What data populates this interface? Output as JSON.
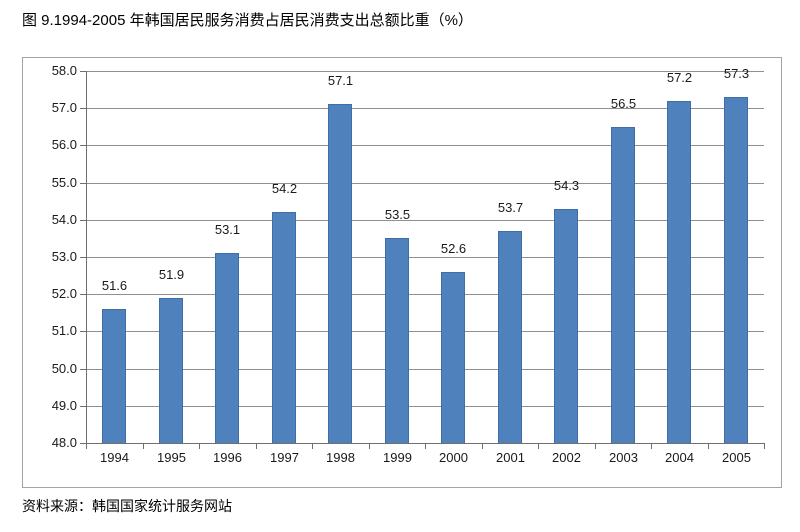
{
  "page": {
    "title": "图 9.1994-2005 年韩国居民服务消费占居民消费支出总额比重（%）",
    "source": "资料来源：韩国国家统计服务网站"
  },
  "chart_data": {
    "type": "bar",
    "title": "图 9.1994-2005 年韩国居民服务消费占居民消费支出总额比重（%）",
    "categories": [
      "1994",
      "1995",
      "1996",
      "1997",
      "1998",
      "1999",
      "2000",
      "2001",
      "2002",
      "2003",
      "2004",
      "2005"
    ],
    "values": [
      51.6,
      51.9,
      53.1,
      54.2,
      57.1,
      53.5,
      52.6,
      53.7,
      54.3,
      56.5,
      57.2,
      57.3
    ],
    "data_labels": [
      "51.6",
      "51.9",
      "53.1",
      "54.2",
      "57.1",
      "53.5",
      "52.6",
      "53.7",
      "54.3",
      "56.5",
      "57.2",
      "57.3"
    ],
    "xlabel": "",
    "ylabel": "",
    "ylim": [
      48.0,
      58.0
    ],
    "ytick_step": 1.0,
    "ytick_labels": [
      "48.0",
      "49.0",
      "50.0",
      "51.0",
      "52.0",
      "53.0",
      "54.0",
      "55.0",
      "56.0",
      "57.0",
      "58.0"
    ],
    "grid": true,
    "legend_position": "none",
    "source": "资料来源：韩国国家统计服务网站",
    "colors": {
      "bar_fill": "#4f81bd",
      "bar_border": "#3f6da6",
      "gridline": "#8f8f8f",
      "axis": "#6f6f6f",
      "frame_border": "#a3a3a3",
      "text": "#1a1a1a"
    }
  }
}
